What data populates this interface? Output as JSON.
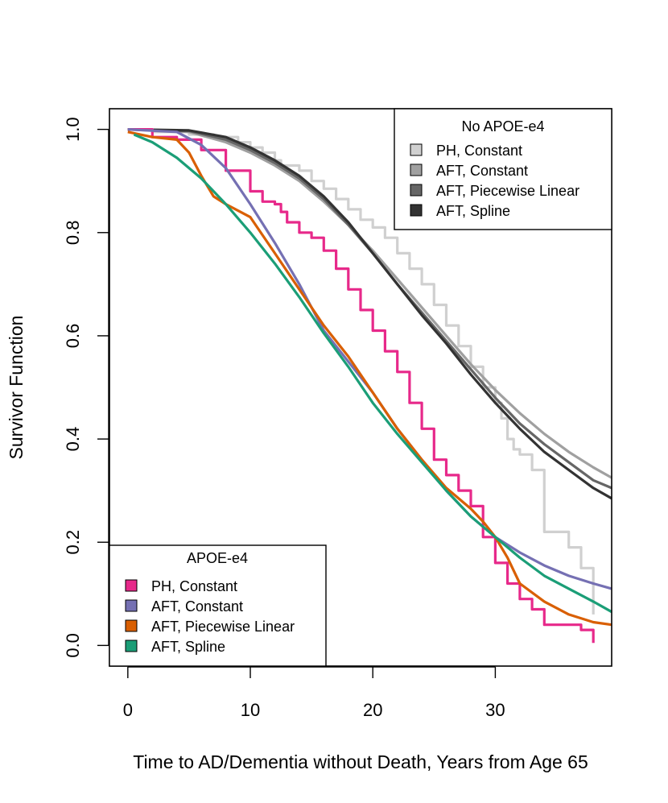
{
  "chart_data": {
    "type": "line",
    "title": "",
    "xlabel": "Time to AD/Dementia without Death, Years from Age 65",
    "ylabel": "Survivor Function",
    "xlim": [
      -1.5,
      39.5
    ],
    "ylim": [
      -0.04,
      1.04
    ],
    "x_ticks": [
      0,
      10,
      20,
      30
    ],
    "y_ticks": [
      0.0,
      0.2,
      0.4,
      0.6,
      0.8,
      1.0
    ],
    "x_tick_labels": [
      "0",
      "10",
      "20",
      "30"
    ],
    "y_tick_labels": [
      "0.0",
      "0.2",
      "0.4",
      "0.6",
      "0.8",
      "1.0"
    ],
    "legends": [
      {
        "title": "No APOE-e4",
        "placement": "top-right",
        "entries": [
          "PH, Constant",
          "AFT, Constant",
          "AFT, Piecewise Linear",
          "AFT, Spline"
        ],
        "colors": [
          "#d0d0d0",
          "#a0a0a0",
          "#666666",
          "#333333"
        ]
      },
      {
        "title": "APOE-e4",
        "placement": "bottom-left",
        "entries": [
          "PH, Constant",
          "AFT, Constant",
          "AFT, Piecewise Linear",
          "AFT, Spline"
        ],
        "colors": [
          "#e7298a",
          "#7570b3",
          "#d95f02",
          "#1b9e77"
        ]
      }
    ],
    "series": [
      {
        "name": "No APOE-e4: PH, Constant",
        "color": "#d0d0d0",
        "step": true,
        "x": [
          0,
          2,
          5,
          7,
          9,
          10,
          11,
          12,
          12.5,
          14,
          15,
          16,
          17,
          18,
          19,
          20,
          21,
          22,
          23,
          24,
          25,
          26,
          27,
          28,
          29,
          30,
          30.5,
          31,
          31.5,
          32,
          33,
          34,
          35,
          36,
          37,
          38
        ],
        "y": [
          1.0,
          0.995,
          0.99,
          0.985,
          0.975,
          0.965,
          0.955,
          0.94,
          0.93,
          0.92,
          0.9,
          0.885,
          0.865,
          0.845,
          0.825,
          0.81,
          0.79,
          0.76,
          0.73,
          0.7,
          0.66,
          0.62,
          0.58,
          0.54,
          0.5,
          0.47,
          0.44,
          0.4,
          0.38,
          0.37,
          0.34,
          0.22,
          0.22,
          0.19,
          0.15,
          0.06
        ]
      },
      {
        "name": "No APOE-e4: AFT, Constant",
        "color": "#a0a0a0",
        "step": false,
        "x": [
          0,
          5,
          8,
          10,
          12,
          14,
          16,
          18,
          20,
          22,
          24,
          26,
          28,
          30,
          32,
          34,
          36,
          38,
          39.5
        ],
        "y": [
          1.0,
          0.995,
          0.975,
          0.955,
          0.93,
          0.9,
          0.86,
          0.815,
          0.765,
          0.71,
          0.655,
          0.6,
          0.545,
          0.495,
          0.45,
          0.41,
          0.375,
          0.345,
          0.325
        ]
      },
      {
        "name": "No APOE-e4: AFT, Piecewise Linear",
        "color": "#666666",
        "step": false,
        "x": [
          0,
          5,
          8,
          10,
          12,
          14,
          16,
          18,
          20,
          22,
          24,
          26,
          28,
          30,
          32,
          34,
          36,
          38,
          39.5
        ],
        "y": [
          1.0,
          0.997,
          0.98,
          0.96,
          0.935,
          0.905,
          0.865,
          0.815,
          0.76,
          0.7,
          0.645,
          0.59,
          0.535,
          0.48,
          0.43,
          0.39,
          0.355,
          0.32,
          0.305
        ]
      },
      {
        "name": "No APOE-e4: AFT, Spline",
        "color": "#333333",
        "step": false,
        "x": [
          0,
          5,
          8,
          10,
          12,
          14,
          16,
          18,
          20,
          22,
          24,
          26,
          28,
          30,
          32,
          34,
          36,
          38,
          39.5
        ],
        "y": [
          1.0,
          0.998,
          0.985,
          0.965,
          0.94,
          0.91,
          0.87,
          0.82,
          0.76,
          0.7,
          0.64,
          0.585,
          0.525,
          0.47,
          0.42,
          0.375,
          0.34,
          0.305,
          0.285
        ]
      },
      {
        "name": "APOE-e4: PH, Constant",
        "color": "#e7298a",
        "step": true,
        "x": [
          0,
          2,
          4,
          6,
          8,
          10,
          11,
          12,
          12.5,
          13,
          14,
          15,
          16,
          17,
          18,
          19,
          20,
          21,
          22,
          23,
          24,
          25,
          26,
          27,
          28,
          29,
          30,
          31,
          32,
          33,
          34,
          35,
          36,
          37,
          38
        ],
        "y": [
          1.0,
          0.985,
          0.98,
          0.96,
          0.92,
          0.88,
          0.86,
          0.855,
          0.84,
          0.82,
          0.8,
          0.79,
          0.765,
          0.73,
          0.69,
          0.65,
          0.61,
          0.57,
          0.53,
          0.47,
          0.42,
          0.36,
          0.33,
          0.3,
          0.27,
          0.21,
          0.16,
          0.12,
          0.09,
          0.07,
          0.04,
          0.04,
          0.04,
          0.03,
          0.005
        ]
      },
      {
        "name": "APOE-e4: AFT, Constant",
        "color": "#7570b3",
        "step": false,
        "x": [
          0,
          4,
          6,
          8,
          10,
          12,
          14,
          16,
          18,
          20,
          22,
          24,
          26,
          28,
          30,
          32,
          34,
          36,
          38,
          39.5
        ],
        "y": [
          1.0,
          0.995,
          0.97,
          0.925,
          0.855,
          0.78,
          0.7,
          0.61,
          0.55,
          0.49,
          0.42,
          0.36,
          0.3,
          0.25,
          0.21,
          0.18,
          0.155,
          0.135,
          0.12,
          0.11
        ]
      },
      {
        "name": "APOE-e4: AFT, Piecewise Linear",
        "color": "#d95f02",
        "step": false,
        "x": [
          0,
          2,
          4,
          5,
          6,
          7,
          8,
          10,
          12,
          14,
          16,
          18,
          20,
          22,
          24,
          26,
          28,
          29,
          30,
          31,
          32,
          34,
          36,
          38,
          39.5
        ],
        "y": [
          0.995,
          0.985,
          0.98,
          0.955,
          0.91,
          0.87,
          0.855,
          0.83,
          0.76,
          0.69,
          0.62,
          0.56,
          0.49,
          0.42,
          0.36,
          0.305,
          0.265,
          0.24,
          0.21,
          0.17,
          0.12,
          0.085,
          0.06,
          0.045,
          0.04
        ]
      },
      {
        "name": "APOE-e4: AFT, Spline",
        "color": "#1b9e77",
        "step": false,
        "x": [
          0.5,
          2,
          4,
          6,
          8,
          10,
          12,
          14,
          16,
          18,
          20,
          22,
          24,
          26,
          28,
          30,
          32,
          34,
          36,
          38,
          39.5
        ],
        "y": [
          0.99,
          0.975,
          0.945,
          0.905,
          0.855,
          0.8,
          0.74,
          0.675,
          0.605,
          0.54,
          0.47,
          0.41,
          0.355,
          0.3,
          0.25,
          0.21,
          0.17,
          0.135,
          0.11,
          0.085,
          0.065
        ]
      }
    ]
  }
}
